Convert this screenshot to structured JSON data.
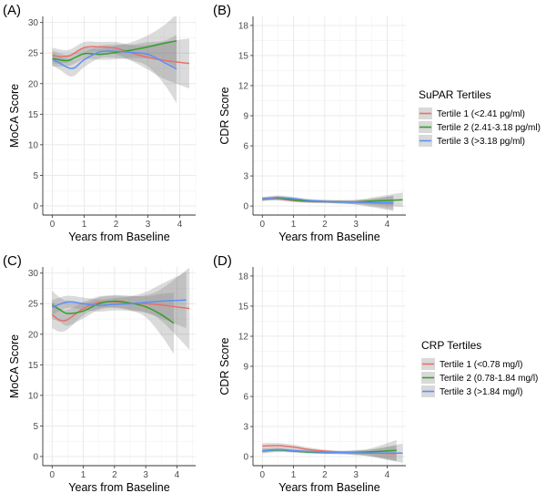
{
  "chart_data": [
    {
      "type": "line",
      "panel_label": "(A)",
      "xlabel": "Years from Baseline",
      "ylabel": "MoCA Score",
      "xlim": [
        -0.3,
        4.5
      ],
      "ylim": [
        -1.5,
        31
      ],
      "xticks": [
        0,
        1,
        2,
        3,
        4
      ],
      "yticks": [
        0,
        5,
        10,
        15,
        20,
        25,
        30
      ],
      "series": [
        {
          "name": "Tertile 1 (<2.41 pg/ml)",
          "color": "#E8706A",
          "x": [
            0,
            0.5,
            1,
            1.5,
            2,
            2.5,
            3,
            3.5,
            4.3
          ],
          "y": [
            24.6,
            24.5,
            25.9,
            26.0,
            25.8,
            25.0,
            24.3,
            23.8,
            23.3
          ],
          "lower": [
            23.3,
            23.5,
            25.0,
            25.2,
            24.8,
            23.7,
            22.3,
            20.8,
            19.2
          ],
          "upper": [
            25.9,
            25.5,
            26.8,
            26.8,
            26.8,
            26.3,
            26.3,
            26.8,
            27.4
          ]
        },
        {
          "name": "Tertile 2 (2.41-3.18 pg/ml)",
          "color": "#33A02C",
          "x": [
            0,
            0.5,
            1,
            1.5,
            2,
            2.5,
            3,
            3.5,
            3.9
          ],
          "y": [
            24.1,
            23.8,
            24.9,
            24.8,
            25.1,
            25.5,
            26.0,
            26.6,
            27.0
          ],
          "lower": [
            22.8,
            22.9,
            24.0,
            23.9,
            24.0,
            24.2,
            24.1,
            23.7,
            22.6
          ],
          "upper": [
            25.4,
            24.7,
            25.8,
            25.7,
            26.2,
            26.8,
            27.9,
            29.5,
            31.4
          ]
        },
        {
          "name": "Tertile 3 (>3.18 pg/ml)",
          "color": "#5B8FF9",
          "x": [
            0,
            0.25,
            0.5,
            0.7,
            1,
            1.5,
            2,
            2.5,
            3,
            3.5,
            3.9
          ],
          "y": [
            24.0,
            23.3,
            22.6,
            22.6,
            23.9,
            25.2,
            25.3,
            25.1,
            24.8,
            23.5,
            22.4
          ],
          "lower": [
            23.0,
            22.2,
            21.3,
            21.3,
            22.7,
            24.2,
            24.2,
            23.8,
            22.8,
            20.0,
            16.8
          ],
          "upper": [
            25.0,
            24.4,
            23.9,
            23.9,
            25.1,
            26.2,
            26.4,
            26.4,
            26.8,
            27.0,
            28.0
          ]
        }
      ]
    },
    {
      "type": "line",
      "panel_label": "(B)",
      "xlabel": "Years from Baseline",
      "ylabel": "CDR Score",
      "xlim": [
        -0.3,
        4.6
      ],
      "ylim": [
        -0.9,
        18.9
      ],
      "xticks": [
        0,
        1,
        2,
        3,
        4
      ],
      "yticks": [
        0,
        3,
        6,
        9,
        12,
        15,
        18
      ],
      "series": [
        {
          "name": "Tertile 1 (<2.41 pg/ml)",
          "color": "#E8706A",
          "x": [
            0,
            0.5,
            1,
            1.5,
            2,
            2.5,
            3,
            3.5,
            4.2
          ],
          "y": [
            0.72,
            0.7,
            0.55,
            0.45,
            0.45,
            0.4,
            0.38,
            0.3,
            0.25
          ],
          "lower": [
            0.55,
            0.55,
            0.4,
            0.3,
            0.3,
            0.25,
            0.15,
            -0.1,
            -0.5
          ],
          "upper": [
            0.9,
            0.85,
            0.7,
            0.6,
            0.6,
            0.55,
            0.6,
            0.7,
            1.0
          ]
        },
        {
          "name": "Tertile 2 (2.41-3.18 pg/ml)",
          "color": "#33A02C",
          "x": [
            0,
            0.5,
            1,
            1.5,
            2,
            2.5,
            3,
            3.5,
            4.5
          ],
          "y": [
            0.7,
            0.8,
            0.6,
            0.5,
            0.45,
            0.42,
            0.4,
            0.5,
            0.62
          ],
          "lower": [
            0.5,
            0.6,
            0.45,
            0.35,
            0.3,
            0.25,
            0.2,
            0.15,
            -0.1
          ],
          "upper": [
            0.9,
            1.0,
            0.75,
            0.65,
            0.6,
            0.6,
            0.6,
            0.85,
            1.35
          ]
        },
        {
          "name": "Tertile 3 (>3.18 pg/ml)",
          "color": "#5B8FF9",
          "x": [
            0,
            0.5,
            1,
            1.5,
            2,
            2.5,
            3,
            3.5,
            4.2
          ],
          "y": [
            0.65,
            0.85,
            0.75,
            0.55,
            0.45,
            0.4,
            0.38,
            0.35,
            0.35
          ],
          "lower": [
            0.5,
            0.65,
            0.6,
            0.4,
            0.3,
            0.25,
            0.15,
            0.0,
            -0.35
          ],
          "upper": [
            0.8,
            1.05,
            0.9,
            0.7,
            0.6,
            0.55,
            0.6,
            0.7,
            1.05
          ]
        }
      ]
    },
    {
      "type": "line",
      "panel_label": "(C)",
      "xlabel": "Years from Baseline",
      "ylabel": "MoCA Score",
      "xlim": [
        -0.3,
        4.6
      ],
      "ylim": [
        -1.5,
        31
      ],
      "xticks": [
        0,
        1,
        2,
        3,
        4
      ],
      "yticks": [
        0,
        5,
        10,
        15,
        20,
        25,
        30
      ],
      "series": [
        {
          "name": "Tertile 1 (<0.78 mg/l)",
          "color": "#E8706A",
          "x": [
            0,
            0.25,
            0.5,
            1,
            1.5,
            2,
            2.5,
            3,
            3.5,
            4.4
          ],
          "y": [
            23.2,
            22.3,
            22.4,
            24.2,
            25.2,
            25.3,
            25.1,
            25.0,
            24.8,
            24.2
          ],
          "lower": [
            21.0,
            20.4,
            20.8,
            23.1,
            24.2,
            24.3,
            24.0,
            23.6,
            22.2,
            17.5
          ],
          "upper": [
            25.4,
            24.2,
            24.0,
            25.3,
            26.2,
            26.3,
            26.2,
            26.4,
            27.4,
            30.9
          ]
        },
        {
          "name": "Tertile 2 (0.78-1.84 mg/l)",
          "color": "#33A02C",
          "x": [
            0,
            0.25,
            0.5,
            1,
            1.5,
            2,
            2.5,
            3,
            3.5,
            3.9
          ],
          "y": [
            24.8,
            24.0,
            23.4,
            23.8,
            25.0,
            25.4,
            25.1,
            24.5,
            23.2,
            21.8
          ],
          "lower": [
            22.5,
            22.0,
            21.4,
            22.6,
            24.0,
            24.4,
            23.9,
            22.8,
            19.8,
            16.8
          ],
          "upper": [
            27.1,
            26.0,
            25.4,
            25.0,
            26.0,
            26.4,
            26.3,
            26.2,
            26.6,
            26.8
          ]
        },
        {
          "name": "Tertile 3 (>1.84 mg/l)",
          "color": "#5B8FF9",
          "x": [
            0,
            0.5,
            1,
            1.5,
            2,
            2.5,
            3,
            3.5,
            4.3
          ],
          "y": [
            24.4,
            25.3,
            25.0,
            24.7,
            24.9,
            25.0,
            25.2,
            25.4,
            25.6
          ],
          "lower": [
            23.2,
            24.3,
            24.0,
            23.7,
            23.9,
            23.8,
            23.5,
            22.6,
            21.0
          ],
          "upper": [
            25.6,
            26.3,
            26.0,
            25.7,
            25.9,
            26.2,
            26.9,
            28.2,
            30.2
          ]
        }
      ]
    },
    {
      "type": "line",
      "panel_label": "(D)",
      "xlabel": "Years from Baseline",
      "ylabel": "CDR Score",
      "xlim": [
        -0.3,
        4.6
      ],
      "ylim": [
        -0.9,
        18.9
      ],
      "xticks": [
        0,
        1,
        2,
        3,
        4
      ],
      "yticks": [
        0,
        3,
        6,
        9,
        12,
        15,
        18
      ],
      "series": [
        {
          "name": "Tertile 1 (<0.78 mg/l)",
          "color": "#E8706A",
          "x": [
            0,
            0.5,
            1,
            1.5,
            2,
            2.5,
            3,
            3.5,
            4.3
          ],
          "y": [
            1.05,
            1.1,
            0.95,
            0.7,
            0.55,
            0.45,
            0.4,
            0.35,
            0.3
          ],
          "lower": [
            0.75,
            0.85,
            0.7,
            0.5,
            0.4,
            0.3,
            0.2,
            0.0,
            -0.5
          ],
          "upper": [
            1.35,
            1.35,
            1.2,
            0.9,
            0.7,
            0.6,
            0.6,
            0.7,
            1.1
          ]
        },
        {
          "name": "Tertile 2 (0.78-1.84 mg/l)",
          "color": "#33A02C",
          "x": [
            0,
            0.5,
            1,
            1.5,
            2,
            2.5,
            3,
            3.5,
            4.3
          ],
          "y": [
            0.55,
            0.65,
            0.55,
            0.45,
            0.4,
            0.4,
            0.42,
            0.48,
            0.62
          ],
          "lower": [
            0.3,
            0.45,
            0.4,
            0.3,
            0.25,
            0.25,
            0.2,
            0.1,
            -0.4
          ],
          "upper": [
            0.8,
            0.85,
            0.7,
            0.6,
            0.55,
            0.55,
            0.65,
            0.85,
            1.65
          ]
        },
        {
          "name": "Tertile 3 (>1.84 mg/l)",
          "color": "#5B8FF9",
          "x": [
            0,
            0.5,
            1,
            1.5,
            2,
            2.5,
            3,
            3.5,
            4.5
          ],
          "y": [
            0.6,
            0.7,
            0.6,
            0.5,
            0.45,
            0.4,
            0.38,
            0.36,
            0.35
          ],
          "lower": [
            0.4,
            0.5,
            0.45,
            0.35,
            0.3,
            0.25,
            0.15,
            0.0,
            -0.6
          ],
          "upper": [
            0.8,
            0.9,
            0.75,
            0.65,
            0.6,
            0.55,
            0.6,
            0.72,
            1.3
          ]
        }
      ]
    }
  ],
  "legends": [
    {
      "title": "SuPAR Tertiles",
      "items": [
        {
          "label": "Tertile 1 (<2.41 pg/ml)",
          "color": "#E8706A"
        },
        {
          "label": "Tertile 2 (2.41-3.18 pg/ml)",
          "color": "#33A02C"
        },
        {
          "label": "Tertile 3 (>3.18 pg/ml)",
          "color": "#5B8FF9"
        }
      ]
    },
    {
      "title": "CRP Tertiles",
      "items": [
        {
          "label": "Tertile 1 (<0.78 mg/l)",
          "color": "#E8706A"
        },
        {
          "label": "Tertile 2 (0.78-1.84 mg/l)",
          "color": "#33A02C"
        },
        {
          "label": "Tertile 3 (>1.84 mg/l)",
          "color": "#5B8FF9"
        }
      ]
    }
  ]
}
